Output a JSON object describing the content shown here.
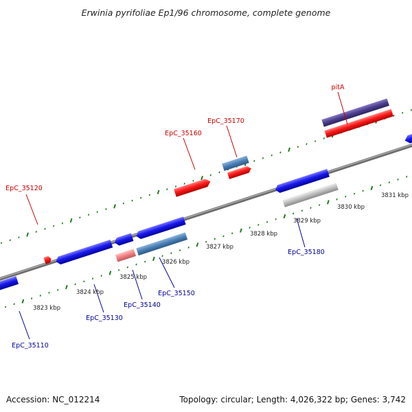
{
  "title": "Erwinia pyrifoliae Ep1/96 chromosome, complete genome",
  "accession_text": "Accession: NC_012214",
  "summary_text": "Topology: circular; Length: 4,026,322 bp; Genes: 3,742",
  "colors": {
    "backbone": "#8a8a8a",
    "tick": "#1e7a1e",
    "forward_gene": "#ff1a1a",
    "reverse_gene": "#1a1aee",
    "pseudo_light_red": "#f08080",
    "steelblue": "#4a7fb5",
    "purple": "#4b3e8c",
    "gray_gene": "#bdbdbd",
    "label_top": "#cc0000",
    "label_bottom": "#000099"
  },
  "scale_labels": [
    "3823 kbp",
    "3824 kbp",
    "3825 kbp",
    "3826 kbp",
    "3827 kbp",
    "3828 kbp",
    "3829 kbp",
    "3830 kbp",
    "3831 kbp"
  ],
  "top_labels": [
    "EpC_35120",
    "EpC_35160",
    "EpC_35170",
    "pitA"
  ],
  "bottom_labels": [
    "EpC_35110",
    "EpC_35130",
    "EpC_35140",
    "EpC_35150",
    "EpC_35180"
  ]
}
